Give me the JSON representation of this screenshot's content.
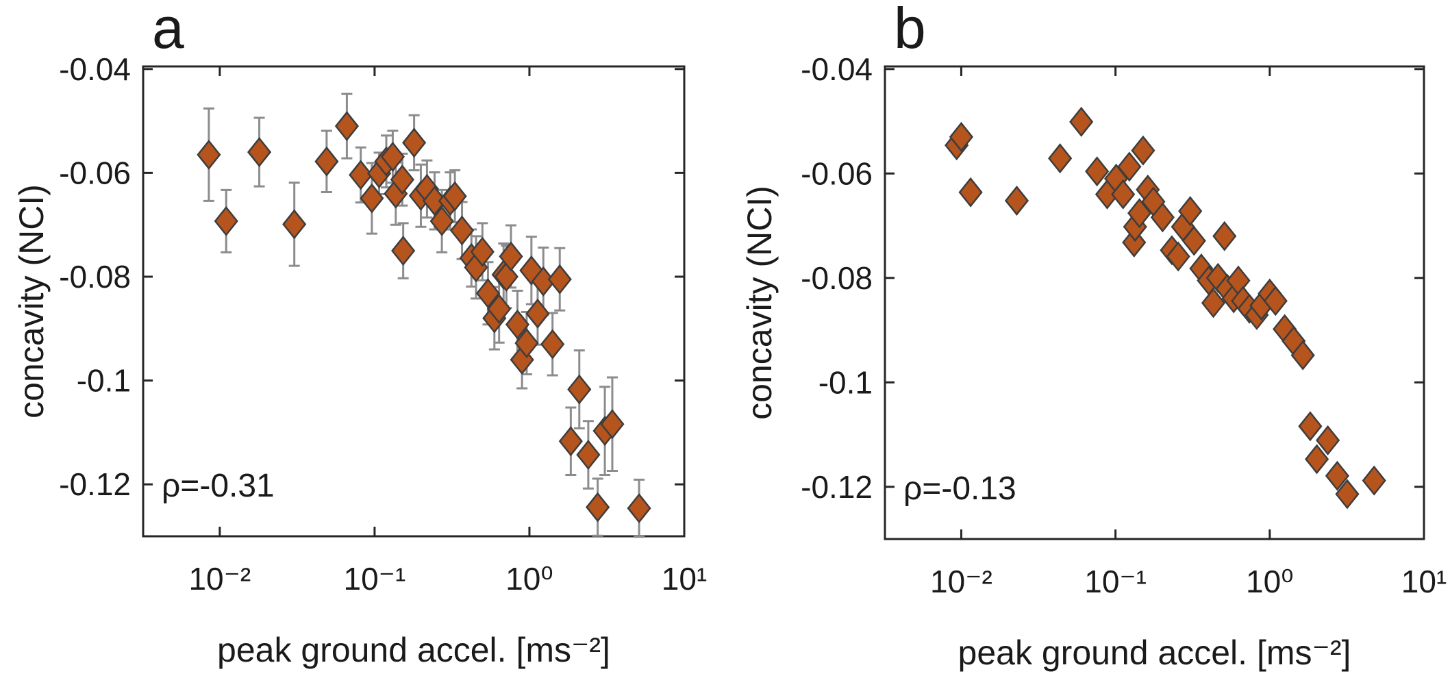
{
  "chart_data": [
    {
      "type": "scatter",
      "panel_label": "a",
      "x_label": "peak ground accel. [ms⁻²]",
      "y_label": "concavity (NCI)",
      "annotation": "ρ=-0.31",
      "xscale": "log",
      "xlim": [
        0.0032,
        10
      ],
      "ylim": [
        -0.13,
        -0.0395
      ],
      "xticks": [
        {
          "value": 0.01,
          "label": "10⁻²"
        },
        {
          "value": 0.1,
          "label": "10⁻¹"
        },
        {
          "value": 1,
          "label": "10⁰"
        },
        {
          "value": 10,
          "label": "10¹"
        }
      ],
      "yticks": [
        -0.04,
        -0.06,
        -0.08,
        -0.1,
        -0.12
      ],
      "marker": "diamond",
      "error_color": "#8c8c8c",
      "series": [
        {
          "color": "#b5541c",
          "x": [
            0.0085,
            0.011,
            0.018,
            0.0303,
            0.049,
            0.0662,
            0.0814,
            0.096,
            0.107,
            0.119,
            0.131,
            0.137,
            0.151,
            0.153,
            0.18,
            0.199,
            0.218,
            0.244,
            0.272,
            0.308,
            0.33,
            0.367,
            0.422,
            0.452,
            0.497,
            0.54,
            0.594,
            0.637,
            0.681,
            0.71,
            0.76,
            0.837,
            0.896,
            0.96,
            1.03,
            1.13,
            1.23,
            1.41,
            1.57,
            1.85,
            2.1,
            2.4,
            2.76,
            3.07,
            3.43,
            5.11
          ],
          "values": [
            -0.0565,
            -0.0693,
            -0.056,
            -0.0699,
            -0.0578,
            -0.051,
            -0.0604,
            -0.0649,
            -0.0601,
            -0.0578,
            -0.0569,
            -0.064,
            -0.0613,
            -0.075,
            -0.0542,
            -0.0644,
            -0.0631,
            -0.0654,
            -0.0693,
            -0.0654,
            -0.0645,
            -0.0711,
            -0.0764,
            -0.0782,
            -0.0752,
            -0.0832,
            -0.088,
            -0.0862,
            -0.0796,
            -0.08,
            -0.0761,
            -0.0892,
            -0.096,
            -0.0928,
            -0.0788,
            -0.0871,
            -0.0809,
            -0.093,
            -0.0805,
            -0.1117,
            -0.1017,
            -0.1143,
            -0.1244,
            -0.1097,
            -0.1084,
            -0.1246
          ],
          "errors": [
            0.0089,
            0.006,
            0.0066,
            0.008,
            0.0059,
            0.0062,
            0.0053,
            0.0068,
            0.004,
            0.005,
            0.005,
            0.006,
            0.005,
            0.0053,
            0.0053,
            0.006,
            0.0055,
            0.0055,
            0.006,
            0.0055,
            0.005,
            0.0055,
            0.0055,
            0.006,
            0.0055,
            0.006,
            0.006,
            0.0065,
            0.006,
            0.006,
            0.006,
            0.0065,
            0.0055,
            0.006,
            0.0065,
            0.006,
            0.0065,
            0.006,
            0.006,
            0.0065,
            0.0075,
            0.0065,
            0.0055,
            0.0085,
            0.009,
            0.0055
          ]
        }
      ]
    },
    {
      "type": "scatter",
      "panel_label": "b",
      "x_label": "peak ground accel. [ms⁻²]",
      "y_label": "concavity (NCI)",
      "annotation": "ρ=-0.13",
      "xscale": "log",
      "xlim": [
        0.0032,
        10
      ],
      "ylim": [
        -0.13,
        -0.0395
      ],
      "xticks": [
        {
          "value": 0.01,
          "label": "10⁻²"
        },
        {
          "value": 0.1,
          "label": "10⁻¹"
        },
        {
          "value": 1,
          "label": "10⁰"
        },
        {
          "value": 10,
          "label": "10¹"
        }
      ],
      "yticks": [
        -0.04,
        -0.06,
        -0.08,
        -0.1,
        -0.12
      ],
      "marker": "diamond",
      "series": [
        {
          "color": "#b5541c",
          "x": [
            0.00933,
            0.01,
            0.0115,
            0.0229,
            0.0437,
            0.06,
            0.0759,
            0.0883,
            0.101,
            0.112,
            0.123,
            0.132,
            0.134,
            0.143,
            0.151,
            0.162,
            0.176,
            0.202,
            0.232,
            0.255,
            0.274,
            0.305,
            0.323,
            0.36,
            0.403,
            0.431,
            0.462,
            0.509,
            0.531,
            0.584,
            0.626,
            0.671,
            0.738,
            0.824,
            0.883,
            1.0,
            1.09,
            1.25,
            1.43,
            1.64,
            1.83,
            2.02,
            2.38,
            2.74,
            3.18,
            4.75
          ],
          "values": [
            -0.0546,
            -0.053,
            -0.0636,
            -0.0652,
            -0.0571,
            -0.0501,
            -0.0596,
            -0.064,
            -0.061,
            -0.064,
            -0.0587,
            -0.0732,
            -0.0702,
            -0.0676,
            -0.0556,
            -0.0631,
            -0.0654,
            -0.0684,
            -0.0747,
            -0.0759,
            -0.0702,
            -0.0672,
            -0.0729,
            -0.0782,
            -0.0805,
            -0.0848,
            -0.08,
            -0.072,
            -0.0821,
            -0.0839,
            -0.0805,
            -0.0844,
            -0.0859,
            -0.0871,
            -0.0853,
            -0.083,
            -0.0844,
            -0.0898,
            -0.0921,
            -0.0948,
            -0.1084,
            -0.1147,
            -0.1111,
            -0.1179,
            -0.1214,
            -0.1188
          ]
        }
      ]
    }
  ]
}
